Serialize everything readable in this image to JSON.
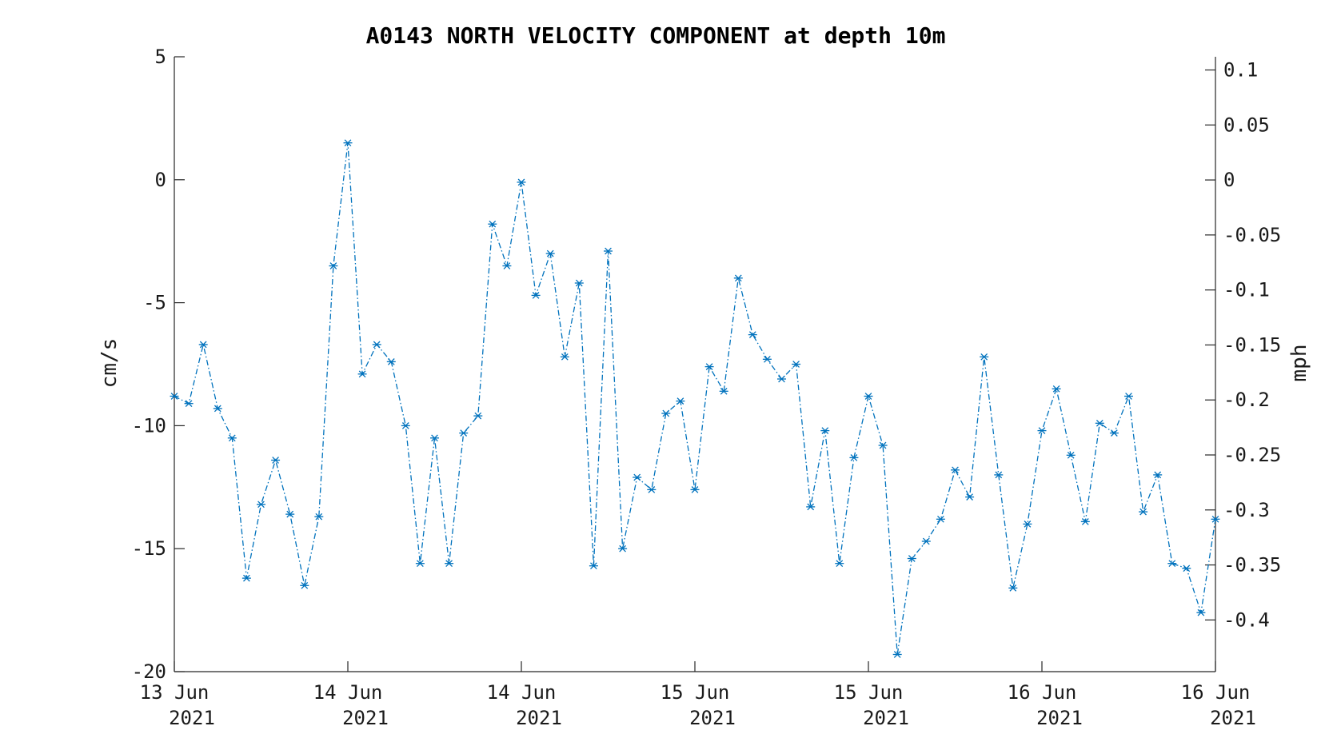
{
  "chart_data": {
    "type": "line",
    "title": "A0143 NORTH VELOCITY COMPONENT at depth 10m",
    "ylabel": "cm/s",
    "ylabel_right": "mph",
    "ylim": [
      -20,
      5
    ],
    "ylim_right": [
      -0.447,
      0.112
    ],
    "grid": false,
    "line_style": "dash-dot",
    "marker": "asterisk",
    "color": "#0072BD",
    "yticks": [
      "5",
      "0",
      "-5",
      "-10",
      "-15",
      "-20"
    ],
    "yticks_right": [
      "0.1",
      "0.05",
      "0",
      "-0.05",
      "-0.1",
      "-0.15",
      "-0.2",
      "-0.25",
      "-0.3",
      "-0.35",
      "-0.4"
    ],
    "xticks": [
      {
        "line1": "13 Jun",
        "line2": "2021"
      },
      {
        "line1": "14 Jun",
        "line2": "2021"
      },
      {
        "line1": "14 Jun",
        "line2": "2021"
      },
      {
        "line1": "15 Jun",
        "line2": "2021"
      },
      {
        "line1": "15 Jun",
        "line2": "2021"
      },
      {
        "line1": "16 Jun",
        "line2": "2021"
      },
      {
        "line1": "16 Jun",
        "line2": "2021"
      }
    ],
    "series": [
      {
        "values": [
          -8.8,
          -9.1,
          -6.7,
          -9.3,
          -10.5,
          -16.2,
          -13.2,
          -11.4,
          -13.6,
          -16.5,
          -13.7,
          -3.5,
          1.5,
          -7.9,
          -6.7,
          -7.4,
          -10.0,
          -15.6,
          -10.5,
          -15.6,
          -10.3,
          -9.6,
          -1.8,
          -3.5,
          -0.1,
          -4.7,
          -3.0,
          -7.2,
          -4.2,
          -15.7,
          -2.9,
          -15.0,
          -12.1,
          -12.6,
          -9.5,
          -9.0,
          -12.6,
          -7.6,
          -8.6,
          -4.0,
          -6.3,
          -7.3,
          -8.1,
          -7.5,
          -13.3,
          -10.2,
          -15.6,
          -11.3,
          -8.8,
          -10.8,
          -19.3,
          -15.4,
          -14.7,
          -13.8,
          -11.8,
          -12.9,
          -7.2,
          -12.0,
          -16.6,
          -14.0,
          -10.2,
          -8.5,
          -11.2,
          -13.9,
          -9.9,
          -10.3,
          -8.8,
          -13.5,
          -12.0,
          -15.6,
          -15.8,
          -17.6,
          -13.8
        ]
      }
    ]
  }
}
